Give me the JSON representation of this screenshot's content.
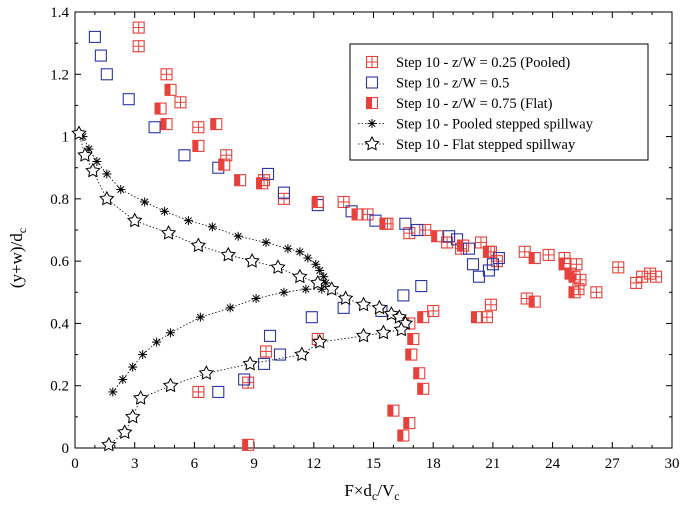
{
  "chart_data": {
    "type": "scatter",
    "xlabel": "F×d",
    "xlabel_sub": "c",
    "xlabel_tail": "/V",
    "xlabel_sub2": "c",
    "ylabel": "(y+w)/d",
    "ylabel_sub": "c",
    "xlim": [
      0,
      30
    ],
    "ylim": [
      0,
      1.4
    ],
    "xticks": [
      "0",
      "3",
      "6",
      "9",
      "12",
      "15",
      "18",
      "21",
      "24",
      "27",
      "30"
    ],
    "yticks": [
      "0",
      "0.2",
      "0.4",
      "0.6",
      "0.8",
      "1",
      "1.2",
      "1.4"
    ],
    "grid": false,
    "legend_position": "top-right",
    "series": [
      {
        "name": "Step 10 - z/W = 0.25 (Pooled)",
        "color": "#e8403a",
        "marker": "square-cross",
        "points": [
          [
            3.2,
            1.35
          ],
          [
            3.2,
            1.29
          ],
          [
            4.6,
            1.2
          ],
          [
            5.3,
            1.11
          ],
          [
            6.2,
            1.03
          ],
          [
            7.6,
            0.94
          ],
          [
            9.5,
            0.86
          ],
          [
            10.5,
            0.8
          ],
          [
            13.5,
            0.79
          ],
          [
            14.7,
            0.75
          ],
          [
            15.7,
            0.72
          ],
          [
            16.8,
            0.69
          ],
          [
            17.6,
            0.7
          ],
          [
            18.7,
            0.66
          ],
          [
            19.4,
            0.64
          ],
          [
            20.4,
            0.66
          ],
          [
            20.9,
            0.63
          ],
          [
            21.2,
            0.6
          ],
          [
            22.6,
            0.63
          ],
          [
            23.8,
            0.62
          ],
          [
            24.6,
            0.61
          ],
          [
            25.2,
            0.59
          ],
          [
            25.4,
            0.54
          ],
          [
            25.3,
            0.51
          ],
          [
            26.2,
            0.5
          ],
          [
            27.3,
            0.58
          ],
          [
            28.2,
            0.53
          ],
          [
            28.5,
            0.55
          ],
          [
            28.9,
            0.56
          ],
          [
            29.2,
            0.55
          ],
          [
            20.9,
            0.46
          ],
          [
            22.7,
            0.48
          ],
          [
            20.7,
            0.42
          ],
          [
            18.0,
            0.44
          ],
          [
            12.2,
            0.35
          ],
          [
            9.6,
            0.31
          ],
          [
            8.7,
            0.21
          ],
          [
            6.2,
            0.18
          ]
        ],
        "note": "qualitative reconstruction"
      },
      {
        "name": "Step 10 - z/W = 0.5",
        "color": "#2a35a8",
        "marker": "square",
        "points": [
          [
            1.0,
            1.32
          ],
          [
            1.3,
            1.26
          ],
          [
            1.6,
            1.2
          ],
          [
            2.7,
            1.12
          ],
          [
            4.0,
            1.03
          ],
          [
            5.5,
            0.94
          ],
          [
            7.2,
            0.9
          ],
          [
            9.7,
            0.88
          ],
          [
            10.5,
            0.82
          ],
          [
            12.2,
            0.78
          ],
          [
            13.9,
            0.76
          ],
          [
            15.1,
            0.73
          ],
          [
            16.6,
            0.72
          ],
          [
            17.2,
            0.7
          ],
          [
            18.8,
            0.68
          ],
          [
            19.2,
            0.67
          ],
          [
            19.8,
            0.64
          ],
          [
            20.0,
            0.59
          ],
          [
            20.3,
            0.55
          ],
          [
            20.8,
            0.57
          ],
          [
            21.0,
            0.59
          ],
          [
            21.3,
            0.61
          ],
          [
            17.4,
            0.52
          ],
          [
            16.5,
            0.49
          ],
          [
            15.4,
            0.44
          ],
          [
            13.5,
            0.45
          ],
          [
            11.9,
            0.42
          ],
          [
            9.8,
            0.36
          ],
          [
            10.3,
            0.3
          ],
          [
            9.5,
            0.27
          ],
          [
            8.5,
            0.22
          ],
          [
            7.2,
            0.18
          ]
        ],
        "note": "qualitative reconstruction"
      },
      {
        "name": "Step 10 - z/W = 0.75 (Flat)",
        "color": "#e8403a",
        "marker": "half-filled-square",
        "points": [
          [
            4.8,
            1.15
          ],
          [
            4.3,
            1.09
          ],
          [
            4.6,
            1.04
          ],
          [
            7.1,
            1.04
          ],
          [
            6.2,
            0.97
          ],
          [
            7.5,
            0.91
          ],
          [
            8.3,
            0.86
          ],
          [
            9.4,
            0.85
          ],
          [
            12.2,
            0.79
          ],
          [
            14.2,
            0.75
          ],
          [
            15.6,
            0.72
          ],
          [
            18.2,
            0.68
          ],
          [
            19.5,
            0.65
          ],
          [
            20.8,
            0.63
          ],
          [
            23.1,
            0.61
          ],
          [
            24.6,
            0.59
          ],
          [
            25.1,
            0.55
          ],
          [
            25.1,
            0.5
          ],
          [
            24.9,
            0.56
          ],
          [
            20.2,
            0.42
          ],
          [
            23.1,
            0.47
          ],
          [
            17.5,
            0.42
          ],
          [
            16.8,
            0.4
          ],
          [
            17.0,
            0.35
          ],
          [
            16.9,
            0.3
          ],
          [
            17.3,
            0.24
          ],
          [
            17.5,
            0.19
          ],
          [
            16.0,
            0.12
          ],
          [
            16.8,
            0.08
          ],
          [
            16.5,
            0.04
          ],
          [
            8.7,
            0.01
          ]
        ],
        "note": "qualitative reconstruction"
      },
      {
        "name": "Step 10 - Pooled stepped spillway",
        "color": "#000000",
        "marker": "asterisk",
        "line": "dotted",
        "points": [
          [
            0.4,
            1.0
          ],
          [
            0.7,
            0.96
          ],
          [
            1.1,
            0.92
          ],
          [
            1.6,
            0.88
          ],
          [
            2.3,
            0.83
          ],
          [
            3.5,
            0.79
          ],
          [
            4.5,
            0.76
          ],
          [
            5.7,
            0.73
          ],
          [
            6.9,
            0.71
          ],
          [
            8.2,
            0.68
          ],
          [
            9.6,
            0.66
          ],
          [
            10.7,
            0.64
          ],
          [
            11.3,
            0.63
          ],
          [
            11.7,
            0.61
          ],
          [
            12.1,
            0.59
          ],
          [
            12.3,
            0.57
          ],
          [
            12.5,
            0.55
          ],
          [
            12.6,
            0.53
          ],
          [
            12.4,
            0.51
          ],
          [
            11.6,
            0.51
          ],
          [
            10.5,
            0.5
          ],
          [
            9.1,
            0.48
          ],
          [
            7.8,
            0.45
          ],
          [
            6.3,
            0.42
          ],
          [
            4.8,
            0.37
          ],
          [
            4.1,
            0.34
          ],
          [
            3.4,
            0.3
          ],
          [
            2.9,
            0.26
          ],
          [
            2.4,
            0.22
          ],
          [
            1.9,
            0.18
          ]
        ],
        "note": "qualitative reconstruction"
      },
      {
        "name": "Step 10 - Flat stepped spillway",
        "color": "#000000",
        "marker": "star",
        "line": "dotted",
        "points": [
          [
            0.2,
            1.01
          ],
          [
            0.5,
            0.94
          ],
          [
            0.9,
            0.89
          ],
          [
            1.6,
            0.8
          ],
          [
            3.0,
            0.73
          ],
          [
            4.7,
            0.69
          ],
          [
            6.2,
            0.65
          ],
          [
            7.7,
            0.62
          ],
          [
            8.9,
            0.6
          ],
          [
            10.2,
            0.58
          ],
          [
            11.3,
            0.55
          ],
          [
            12.2,
            0.53
          ],
          [
            12.9,
            0.51
          ],
          [
            13.6,
            0.48
          ],
          [
            14.5,
            0.46
          ],
          [
            15.3,
            0.45
          ],
          [
            15.9,
            0.43
          ],
          [
            16.3,
            0.42
          ],
          [
            16.6,
            0.4
          ],
          [
            16.4,
            0.38
          ],
          [
            15.5,
            0.37
          ],
          [
            14.5,
            0.36
          ],
          [
            12.3,
            0.34
          ],
          [
            11.4,
            0.3
          ],
          [
            8.8,
            0.27
          ],
          [
            6.6,
            0.24
          ],
          [
            4.8,
            0.2
          ],
          [
            3.3,
            0.16
          ],
          [
            2.9,
            0.1
          ],
          [
            2.5,
            0.05
          ],
          [
            1.7,
            0.01
          ]
        ],
        "note": "qualitative reconstruction"
      }
    ]
  }
}
